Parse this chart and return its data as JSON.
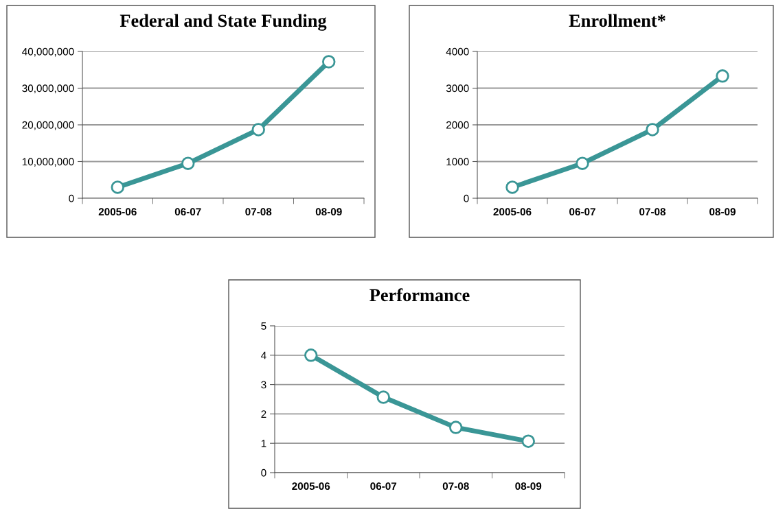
{
  "chart_data": [
    {
      "type": "line",
      "title": "Federal and State Funding",
      "categories": [
        "2005-06",
        "06-07",
        "07-08",
        "08-09"
      ],
      "series": [
        {
          "color": "#3a9696",
          "values": [
            3000000,
            9500000,
            18700000,
            37200000
          ]
        }
      ],
      "ylim": [
        0,
        40000000
      ],
      "yticks": [
        0,
        {
          "value": 10000000,
          "label": "10,000,000"
        },
        {
          "value": 20000000,
          "label": "20,000,000"
        },
        {
          "value": 30000000,
          "label": "30,000,000"
        },
        {
          "value": 40000000,
          "label": "40,000,000"
        }
      ],
      "grid": "y",
      "marker": "circle",
      "line_style": "solid",
      "legend": false
    },
    {
      "type": "line",
      "title": "Enrollment*",
      "categories": [
        "2005-06",
        "06-07",
        "07-08",
        "08-09"
      ],
      "series": [
        {
          "color": "#3a9696",
          "values": [
            300,
            950,
            1870,
            3330
          ]
        }
      ],
      "ylim": [
        0,
        4000
      ],
      "yticks": [
        0,
        1000,
        2000,
        3000,
        4000
      ],
      "grid": "y",
      "marker": "circle",
      "line_style": "solid",
      "legend": false
    },
    {
      "type": "line",
      "title": "Performance",
      "categories": [
        "2005-06",
        "06-07",
        "07-08",
        "08-09"
      ],
      "series": [
        {
          "color": "#3a9696",
          "values": [
            4.0,
            2.57,
            1.54,
            1.07
          ]
        }
      ],
      "ylim": [
        0,
        5
      ],
      "yticks": [
        0,
        1,
        2,
        3,
        4,
        5
      ],
      "grid": "y",
      "marker": "circle",
      "line_style": "solid",
      "legend": false
    }
  ]
}
